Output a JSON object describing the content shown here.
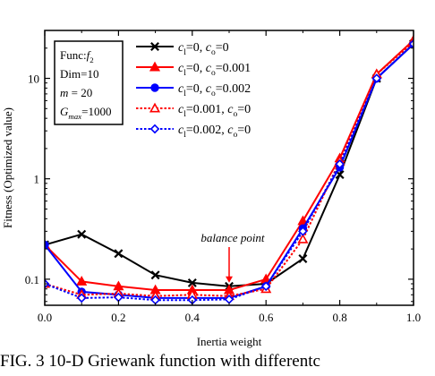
{
  "chart_data": {
    "type": "line",
    "title": "",
    "xlabel": "Inertia weight",
    "ylabel": "Fitness (Optimized value)",
    "xlim": [
      0.0,
      1.0
    ],
    "ylim": [
      0.055,
      30
    ],
    "y_scale": "log",
    "grid": false,
    "legend_position": "top-center",
    "x_ticks": [
      "0.0",
      "0.2",
      "0.4",
      "0.6",
      "0.8",
      "1.0"
    ],
    "y_ticks": [
      {
        "value": 0.1,
        "label": "0.1"
      },
      {
        "value": 1,
        "label": "1"
      },
      {
        "value": 10,
        "label": "10"
      }
    ],
    "x": [
      0.0,
      0.1,
      0.2,
      0.3,
      0.4,
      0.5,
      0.6,
      0.7,
      0.8,
      0.9,
      1.0
    ],
    "series": [
      {
        "name_parts": [
          {
            "t": "c",
            "i": true
          },
          {
            "t": "l",
            "sub": true
          },
          {
            "t": "=0, "
          },
          {
            "t": "c",
            "i": true
          },
          {
            "t": "o",
            "sub": true
          },
          {
            "t": "=0"
          }
        ],
        "color": "#000000",
        "marker": "x",
        "dash": "solid",
        "values": [
          0.22,
          0.28,
          0.18,
          0.11,
          0.092,
          0.085,
          0.09,
          0.16,
          1.1,
          10,
          22
        ]
      },
      {
        "name_parts": [
          {
            "t": "c",
            "i": true
          },
          {
            "t": "l",
            "sub": true
          },
          {
            "t": "=0, "
          },
          {
            "t": "c",
            "i": true
          },
          {
            "t": "o",
            "sub": true
          },
          {
            "t": "=0.001"
          }
        ],
        "color": "#ff0000",
        "marker": "triangle",
        "dash": "solid",
        "values": [
          0.22,
          0.095,
          0.085,
          0.078,
          0.078,
          0.078,
          0.1,
          0.38,
          1.6,
          11,
          24
        ]
      },
      {
        "name_parts": [
          {
            "t": "c",
            "i": true
          },
          {
            "t": "l",
            "sub": true
          },
          {
            "t": "=0, "
          },
          {
            "t": "c",
            "i": true
          },
          {
            "t": "o",
            "sub": true
          },
          {
            "t": "=0.002"
          }
        ],
        "color": "#0000ff",
        "marker": "circle",
        "dash": "solid",
        "values": [
          0.22,
          0.075,
          0.07,
          0.065,
          0.065,
          0.065,
          0.085,
          0.32,
          1.3,
          10,
          22
        ]
      },
      {
        "name_parts": [
          {
            "t": "c",
            "i": true
          },
          {
            "t": "l",
            "sub": true
          },
          {
            "t": "=0.001, "
          },
          {
            "t": "c",
            "i": true
          },
          {
            "t": "o",
            "sub": true
          },
          {
            "t": "=0"
          }
        ],
        "color": "#ff0000",
        "marker": "triangle-open",
        "dash": "dot",
        "values": [
          0.09,
          0.07,
          0.072,
          0.068,
          0.07,
          0.068,
          0.08,
          0.25,
          1.5,
          11,
          23
        ]
      },
      {
        "name_parts": [
          {
            "t": "c",
            "i": true
          },
          {
            "t": "l",
            "sub": true
          },
          {
            "t": "=0.002, "
          },
          {
            "t": "c",
            "i": true
          },
          {
            "t": "o",
            "sub": true
          },
          {
            "t": "=0"
          }
        ],
        "color": "#0000ff",
        "marker": "diamond-open",
        "dash": "dot",
        "values": [
          0.09,
          0.065,
          0.066,
          0.062,
          0.062,
          0.063,
          0.085,
          0.3,
          1.4,
          10,
          22
        ]
      }
    ],
    "info_box": [
      [
        {
          "t": "Func:"
        },
        {
          "t": "f",
          "i": true
        },
        {
          "t": "2",
          "sub": true
        }
      ],
      [
        {
          "t": "Dim=10"
        }
      ],
      [
        {
          "t": "m",
          "i": true
        },
        {
          "t": " = 20"
        }
      ],
      [
        {
          "t": "G",
          "i": true
        },
        {
          "t": "max",
          "sub": true,
          "i": true
        },
        {
          "t": "=1000"
        }
      ]
    ],
    "annotation": {
      "text": "balance point",
      "x": 0.5,
      "y": 0.085
    }
  },
  "caption": "FIG. 3 10-D Griewank function with differentc"
}
